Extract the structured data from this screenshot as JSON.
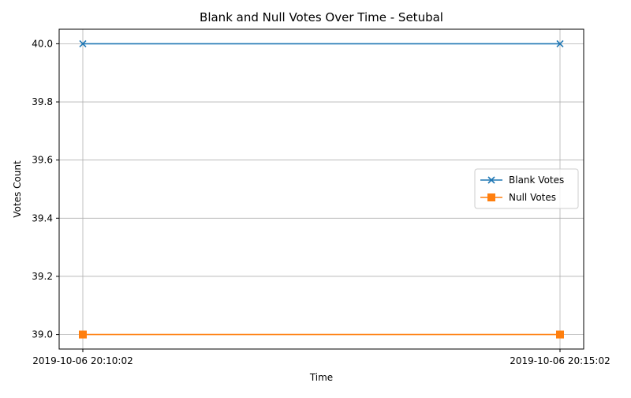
{
  "chart_data": {
    "type": "line",
    "title": "Blank and Null Votes Over Time - Setubal",
    "xlabel": "Time",
    "ylabel": "Votes Count",
    "categories": [
      "2019-10-06 20:10:02",
      "2019-10-06 20:15:02"
    ],
    "ylim": [
      38.95,
      40.05
    ],
    "yticks": [
      39.0,
      39.2,
      39.4,
      39.6,
      39.8,
      40.0
    ],
    "ytick_labels": [
      "39.0",
      "39.2",
      "39.4",
      "39.6",
      "39.8",
      "40.0"
    ],
    "grid": true,
    "legend_position": "center-right",
    "series": [
      {
        "name": "Blank Votes",
        "values": [
          40,
          40
        ],
        "color": "#1f77b4",
        "marker": "x"
      },
      {
        "name": "Null Votes",
        "values": [
          39,
          39
        ],
        "color": "#ff7f0e",
        "marker": "square"
      }
    ]
  }
}
